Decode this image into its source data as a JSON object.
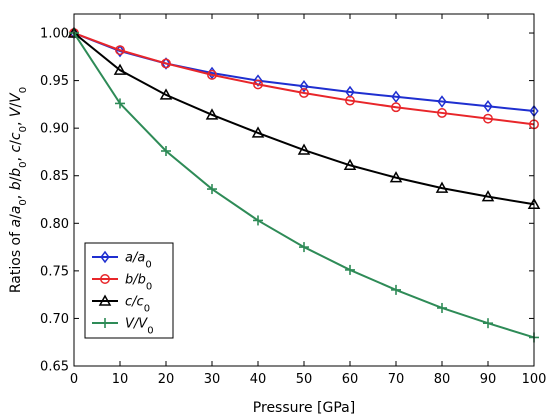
{
  "chart_data": {
    "type": "line",
    "xlabel": "Pressure [GPa]",
    "ylabel_parts": [
      {
        "t": "Ratios of "
      },
      {
        "t": "a",
        "i": true
      },
      {
        "t": "/"
      },
      {
        "t": "a",
        "i": true
      },
      {
        "t": "0",
        "sub": true
      },
      {
        "t": ", "
      },
      {
        "t": "b",
        "i": true
      },
      {
        "t": "/"
      },
      {
        "t": "b",
        "i": true
      },
      {
        "t": "0",
        "sub": true
      },
      {
        "t": ", "
      },
      {
        "t": "c",
        "i": true
      },
      {
        "t": "/"
      },
      {
        "t": "c",
        "i": true
      },
      {
        "t": "0",
        "sub": true
      },
      {
        "t": ", "
      },
      {
        "t": "V",
        "i": true
      },
      {
        "t": "/"
      },
      {
        "t": "V",
        "i": true
      },
      {
        "t": "0",
        "sub": true
      }
    ],
    "xlim": [
      0,
      100
    ],
    "ylim": [
      0.65,
      1.02
    ],
    "xticks": [
      0,
      10,
      20,
      30,
      40,
      50,
      60,
      70,
      80,
      90,
      100
    ],
    "xtick_labels": [
      "0",
      "10",
      "20",
      "30",
      "40",
      "50",
      "60",
      "70",
      "80",
      "90",
      "100"
    ],
    "yticks": [
      0.65,
      0.7,
      0.75,
      0.8,
      0.85,
      0.9,
      0.95,
      1.0
    ],
    "ytick_labels": [
      "0.65",
      "0.70",
      "0.75",
      "0.80",
      "0.85",
      "0.90",
      "0.95",
      "1.00"
    ],
    "grid": false,
    "legend_position": "lower-left",
    "x": [
      0,
      10,
      20,
      30,
      40,
      50,
      60,
      70,
      80,
      90,
      100
    ],
    "series": [
      {
        "key": "a",
        "label_parts": [
          {
            "t": "a"
          },
          {
            "t": "/"
          },
          {
            "t": "a"
          },
          {
            "t": "0",
            "sub": true
          }
        ],
        "color": "#1f2fd0",
        "marker": "diamond",
        "values": [
          1.0,
          0.981,
          0.968,
          0.958,
          0.95,
          0.944,
          0.938,
          0.933,
          0.928,
          0.923,
          0.918
        ]
      },
      {
        "key": "b",
        "label_parts": [
          {
            "t": "b"
          },
          {
            "t": "/"
          },
          {
            "t": "b"
          },
          {
            "t": "0",
            "sub": true
          }
        ],
        "color": "#e8262a",
        "marker": "circle",
        "values": [
          1.0,
          0.982,
          0.968,
          0.956,
          0.946,
          0.937,
          0.929,
          0.922,
          0.916,
          0.91,
          0.904
        ]
      },
      {
        "key": "c",
        "label_parts": [
          {
            "t": "c"
          },
          {
            "t": "/"
          },
          {
            "t": "c"
          },
          {
            "t": "0",
            "sub": true
          }
        ],
        "color": "#000000",
        "marker": "triangle",
        "values": [
          1.0,
          0.961,
          0.935,
          0.914,
          0.895,
          0.877,
          0.861,
          0.848,
          0.837,
          0.828,
          0.82
        ]
      },
      {
        "key": "V",
        "label_parts": [
          {
            "t": "V"
          },
          {
            "t": "/"
          },
          {
            "t": "V"
          },
          {
            "t": "0",
            "sub": true
          }
        ],
        "color": "#2e8b57",
        "marker": "plus",
        "values": [
          1.0,
          0.926,
          0.876,
          0.836,
          0.803,
          0.775,
          0.751,
          0.73,
          0.711,
          0.695,
          0.68
        ]
      }
    ]
  }
}
